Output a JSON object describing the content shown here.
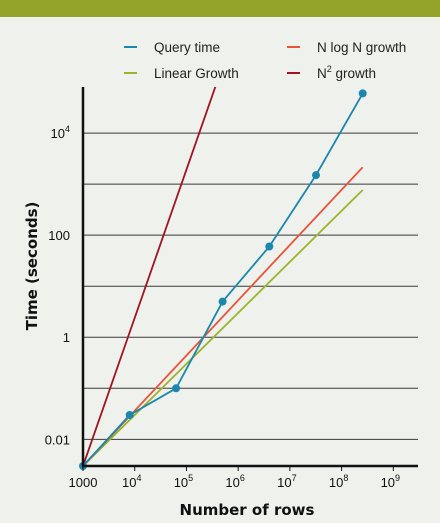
{
  "chart_data": {
    "type": "line",
    "title": "",
    "xlabel": "Number of rows",
    "ylabel": "Time (seconds)",
    "x_scale": "log10",
    "y_scale": "log10",
    "xlim": [
      1000,
      3000000000
    ],
    "ylim": [
      0.003,
      80000
    ],
    "grid": "horizontal",
    "legend_position": "top",
    "x_ticks": [
      {
        "value": 1000,
        "base": "1000",
        "exp": ""
      },
      {
        "value": 10000,
        "base": "10",
        "exp": "4"
      },
      {
        "value": 100000,
        "base": "10",
        "exp": "5"
      },
      {
        "value": 1000000,
        "base": "10",
        "exp": "6"
      },
      {
        "value": 10000000,
        "base": "10",
        "exp": "7"
      },
      {
        "value": 100000000,
        "base": "10",
        "exp": "8"
      },
      {
        "value": 1000000000,
        "base": "10",
        "exp": "9"
      }
    ],
    "y_ticks": [
      {
        "value": 0.01,
        "base": "0.01",
        "exp": ""
      },
      {
        "value": 1,
        "base": "1",
        "exp": ""
      },
      {
        "value": 100,
        "base": "100",
        "exp": ""
      },
      {
        "value": 10000,
        "base": "10",
        "exp": "4"
      }
    ],
    "y_gridlines": [
      0.01,
      0.1,
      1,
      10,
      100,
      1000,
      10000,
      100000
    ],
    "series": [
      {
        "key": "query",
        "name": "Query time",
        "color": "#1b87ad",
        "markers": true,
        "x": [
          1000,
          8000,
          63000,
          500000,
          4000000,
          32000000,
          256000000
        ],
        "y": [
          0.003,
          0.03,
          0.1,
          5,
          60,
          1500,
          60000
        ]
      },
      {
        "key": "linear",
        "name": "Linear Growth",
        "color": "#9ab42c",
        "markers": false,
        "x": [
          1000,
          256000000
        ],
        "y": [
          0.003,
          768
        ]
      },
      {
        "key": "nlogn",
        "name": "N log N growth",
        "color": "#e8543a",
        "markers": false,
        "x": [
          1000,
          256000000
        ],
        "y": [
          0.003,
          2150
        ]
      },
      {
        "key": "n2",
        "name": "N",
        "name_sup": "2",
        "name_rest": " growth",
        "color": "#a01422",
        "markers": false,
        "x": [
          1000,
          2100000
        ],
        "y": [
          0.003,
          13230000
        ]
      }
    ]
  }
}
